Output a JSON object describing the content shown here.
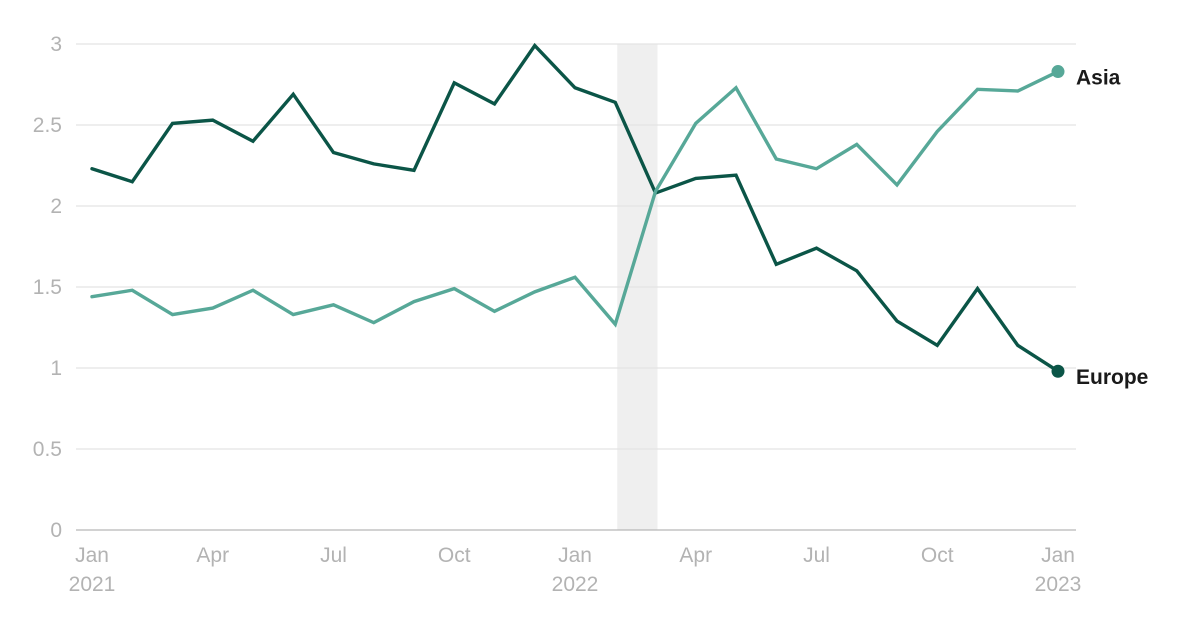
{
  "chart_data": {
    "type": "line",
    "title": "",
    "xlabel": "",
    "ylabel": "",
    "ylim": [
      0,
      3
    ],
    "yticks": [
      0,
      0.5,
      1,
      1.5,
      2,
      2.5,
      3
    ],
    "ytick_labels": [
      "0",
      "0.5",
      "1",
      "1.5",
      "2",
      "2.5",
      "3"
    ],
    "grid": true,
    "legend": "inline-right",
    "x": [
      "2021-01",
      "2021-02",
      "2021-03",
      "2021-04",
      "2021-05",
      "2021-06",
      "2021-07",
      "2021-08",
      "2021-09",
      "2021-10",
      "2021-11",
      "2021-12",
      "2022-01",
      "2022-02",
      "2022-03",
      "2022-04",
      "2022-05",
      "2022-06",
      "2022-07",
      "2022-08",
      "2022-09",
      "2022-10",
      "2022-11",
      "2022-12",
      "2023-01"
    ],
    "xtick_labels": [
      {
        "x": "2021-01",
        "lines": [
          "Jan",
          "2021"
        ]
      },
      {
        "x": "2021-04",
        "lines": [
          "Apr"
        ]
      },
      {
        "x": "2021-07",
        "lines": [
          "Jul"
        ]
      },
      {
        "x": "2021-10",
        "lines": [
          "Oct"
        ]
      },
      {
        "x": "2022-01",
        "lines": [
          "Jan",
          "2022"
        ]
      },
      {
        "x": "2022-04",
        "lines": [
          "Apr"
        ]
      },
      {
        "x": "2022-07",
        "lines": [
          "Jul"
        ]
      },
      {
        "x": "2022-10",
        "lines": [
          "Oct"
        ]
      },
      {
        "x": "2023-01",
        "lines": [
          "Jan",
          "2023"
        ]
      }
    ],
    "highlight_band": {
      "from": "2022-02",
      "to": "2022-03",
      "color": "#efefef"
    },
    "series": [
      {
        "name": "Europe",
        "color": "#0b5547",
        "values": [
          2.23,
          2.15,
          2.51,
          2.53,
          2.4,
          2.69,
          2.33,
          2.26,
          2.22,
          2.76,
          2.63,
          2.99,
          2.73,
          2.64,
          2.08,
          2.17,
          2.19,
          1.64,
          1.74,
          1.6,
          1.29,
          1.14,
          1.49,
          1.14,
          0.98
        ]
      },
      {
        "name": "Asia",
        "color": "#57a898",
        "values": [
          1.44,
          1.48,
          1.33,
          1.37,
          1.48,
          1.33,
          1.39,
          1.28,
          1.41,
          1.49,
          1.35,
          1.47,
          1.56,
          1.27,
          2.09,
          2.51,
          2.73,
          2.29,
          2.23,
          2.38,
          2.13,
          2.46,
          2.72,
          2.71,
          2.83
        ]
      }
    ]
  }
}
